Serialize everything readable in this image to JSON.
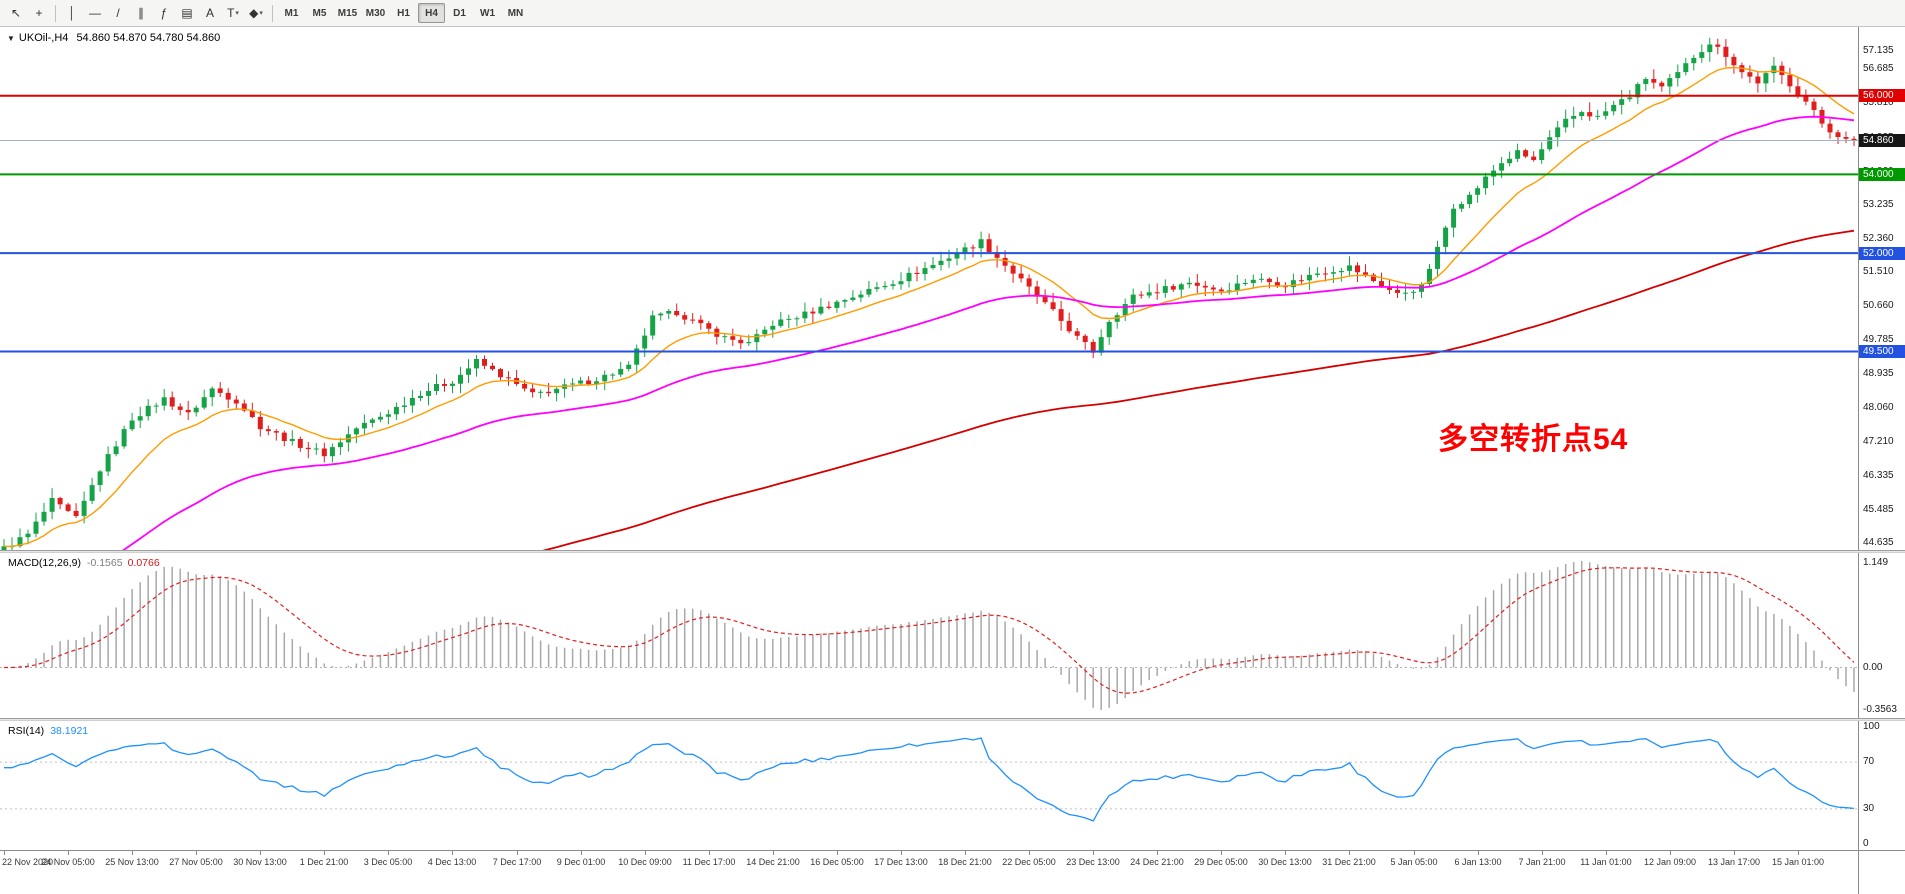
{
  "toolbar": {
    "tools": [
      {
        "name": "cursor",
        "glyph": "↖"
      },
      {
        "name": "crosshair",
        "glyph": "+"
      },
      {
        "divider": true
      },
      {
        "name": "vertical-line",
        "glyph": "│"
      },
      {
        "name": "horizontal-line",
        "glyph": "—"
      },
      {
        "name": "trendline",
        "glyph": "/"
      },
      {
        "name": "equidistant-channel",
        "glyph": "∥"
      },
      {
        "name": "fibonacci-retracement",
        "glyph": "ƒ"
      },
      {
        "name": "grid-lines",
        "glyph": "▤"
      },
      {
        "name": "text-label",
        "glyph": "A"
      },
      {
        "name": "text-annotation",
        "glyph": "T",
        "dropdown": true
      },
      {
        "name": "shapes",
        "glyph": "◆",
        "dropdown": true
      },
      {
        "divider": true
      }
    ],
    "timeframes": [
      "M1",
      "M5",
      "M15",
      "M30",
      "H1",
      "H4",
      "D1",
      "W1",
      "MN"
    ],
    "active_timeframe": "H4"
  },
  "main_chart": {
    "symbol": "UKOil-,H4",
    "ohlc": "54.860 54.870 54.780 54.860",
    "annotation": {
      "text": "多空转折点54",
      "color": "#ff0000"
    }
  },
  "macd_panel": {
    "label": "MACD(12,26,9)",
    "value_main": "-0.1565",
    "value_signal": "0.0766",
    "scale_labels": [
      "1.149",
      "0.00",
      "-0.3563"
    ]
  },
  "rsi_panel": {
    "label": "RSI(14)",
    "value": "38.1921",
    "scale_labels": [
      "100",
      "70",
      "30",
      "0"
    ],
    "scale_values": [
      100,
      70,
      30,
      0
    ]
  },
  "chart_data": [
    {
      "type": "candlestick",
      "title": "UKOil-,H4",
      "timeframe": "H4",
      "current_bid": 54.86,
      "candle_count": 232,
      "close_keyframes": [
        [
          0,
          44.5
        ],
        [
          3,
          44.85
        ],
        [
          6,
          45.7
        ],
        [
          9,
          45.25
        ],
        [
          12,
          46.5
        ],
        [
          16,
          47.8
        ],
        [
          20,
          48.3
        ],
        [
          23,
          47.9
        ],
        [
          26,
          48.55
        ],
        [
          29,
          48.25
        ],
        [
          32,
          47.6
        ],
        [
          36,
          47.2
        ],
        [
          40,
          46.9
        ],
        [
          44,
          47.55
        ],
        [
          48,
          47.95
        ],
        [
          52,
          48.45
        ],
        [
          56,
          48.75
        ],
        [
          59,
          49.25
        ],
        [
          62,
          48.9
        ],
        [
          66,
          48.4
        ],
        [
          70,
          48.6
        ],
        [
          74,
          48.8
        ],
        [
          78,
          49.1
        ],
        [
          81,
          50.35
        ],
        [
          84,
          50.5
        ],
        [
          87,
          50.15
        ],
        [
          90,
          49.85
        ],
        [
          93,
          49.7
        ],
        [
          96,
          50.2
        ],
        [
          100,
          50.45
        ],
        [
          104,
          50.75
        ],
        [
          108,
          51.05
        ],
        [
          112,
          51.35
        ],
        [
          116,
          51.7
        ],
        [
          120,
          52.1
        ],
        [
          122,
          52.3
        ],
        [
          125,
          51.7
        ],
        [
          128,
          51.1
        ],
        [
          131,
          50.5
        ],
        [
          134,
          49.85
        ],
        [
          136,
          49.5
        ],
        [
          138,
          50.3
        ],
        [
          141,
          50.9
        ],
        [
          144,
          51.05
        ],
        [
          148,
          51.25
        ],
        [
          152,
          51.05
        ],
        [
          156,
          51.35
        ],
        [
          160,
          51.2
        ],
        [
          164,
          51.5
        ],
        [
          168,
          51.65
        ],
        [
          171,
          51.3
        ],
        [
          174,
          50.95
        ],
        [
          177,
          51.15
        ],
        [
          179,
          52.1
        ],
        [
          181,
          53.2
        ],
        [
          183,
          53.45
        ],
        [
          185,
          53.9
        ],
        [
          187,
          54.3
        ],
        [
          189,
          54.55
        ],
        [
          191,
          54.35
        ],
        [
          193,
          54.9
        ],
        [
          195,
          55.35
        ],
        [
          197,
          55.6
        ],
        [
          199,
          55.45
        ],
        [
          201,
          55.75
        ],
        [
          203,
          56.0
        ],
        [
          205,
          56.45
        ],
        [
          207,
          56.2
        ],
        [
          209,
          56.55
        ],
        [
          211,
          57.0
        ],
        [
          213,
          57.35
        ],
        [
          215,
          57.05
        ],
        [
          217,
          56.6
        ],
        [
          219,
          56.35
        ],
        [
          221,
          56.7
        ],
        [
          223,
          56.3
        ],
        [
          225,
          55.85
        ],
        [
          227,
          55.3
        ],
        [
          229,
          54.95
        ],
        [
          231,
          54.86
        ]
      ],
      "y_axis": {
        "max": 57.135,
        "min": 44.635,
        "tick_labels": [
          57.135,
          56.685,
          55.81,
          54.935,
          54.06,
          53.235,
          52.36,
          51.51,
          50.66,
          49.785,
          48.935,
          48.06,
          47.21,
          46.335,
          45.485,
          44.635
        ]
      },
      "x_labels": [
        "22 Nov 2020",
        "24 Nov 05:00",
        "25 Nov 13:00",
        "27 Nov 05:00",
        "30 Nov 13:00",
        "1 Dec 21:00",
        "3 Dec 05:00",
        "4 Dec 13:00",
        "7 Dec 17:00",
        "9 Dec 01:00",
        "10 Dec 09:00",
        "11 Dec 17:00",
        "14 Dec 21:00",
        "16 Dec 05:00",
        "17 Dec 13:00",
        "18 Dec 21:00",
        "22 Dec 05:00",
        "23 Dec 13:00",
        "24 Dec 21:00",
        "29 Dec 05:00",
        "30 Dec 13:00",
        "31 Dec 21:00",
        "5 Jan 05:00",
        "6 Jan 13:00",
        "7 Jan 21:00",
        "11 Jan 01:00",
        "12 Jan 09:00",
        "13 Jan 17:00",
        "15 Jan 01:00"
      ],
      "x_label_every_n_candles": 8,
      "candle_colors": {
        "up": "#16a348",
        "down": "#e11d1d"
      },
      "h_lines": [
        {
          "price": 56.0,
          "label": "56.000",
          "color": "#e00000",
          "width": 2
        },
        {
          "price": 54.0,
          "label": "54.000",
          "color": "#009a00",
          "width": 2
        },
        {
          "price": 52.0,
          "label": "52.000",
          "color": "#2352e0",
          "width": 2
        },
        {
          "price": 49.5,
          "label": "49.500",
          "color": "#2352e0",
          "width": 2
        }
      ],
      "bid_line": {
        "price": 54.86,
        "label": "54.860",
        "badge_color": "#161616",
        "line_color": "#9db3c8"
      },
      "moving_averages": [
        {
          "name": "ma-fast",
          "period": 12,
          "seed": null,
          "color": "#ff9c00",
          "width": 1.4
        },
        {
          "name": "ma-mid",
          "period": 45,
          "seed": 43.0,
          "color": "#ff00ff",
          "width": 1.8
        },
        {
          "name": "ma-slow",
          "period": 150,
          "seed": 39.5,
          "color": "#d40000",
          "width": 1.8
        }
      ],
      "annotation": {
        "text": "多空转折点54",
        "color": "#ff0000"
      }
    },
    {
      "type": "macd",
      "label": "MACD(12,26,9)",
      "params": [
        12,
        26,
        9
      ],
      "displayed_values": {
        "main": -0.1565,
        "signal": 0.0766
      },
      "scale": {
        "max": 1.149,
        "zero": 0.0,
        "min": -0.3563
      },
      "colors": {
        "histogram": "#a8a8a8",
        "signal": "#e02020",
        "zero_line": "#b0b0b0"
      }
    },
    {
      "type": "rsi",
      "label": "RSI(14)",
      "period": 14,
      "displayed_value": 38.1921,
      "levels": [
        70,
        30
      ],
      "range": [
        0,
        100
      ],
      "colors": {
        "line": "#1e90ff",
        "levels": "#c0c0c0"
      }
    }
  ]
}
